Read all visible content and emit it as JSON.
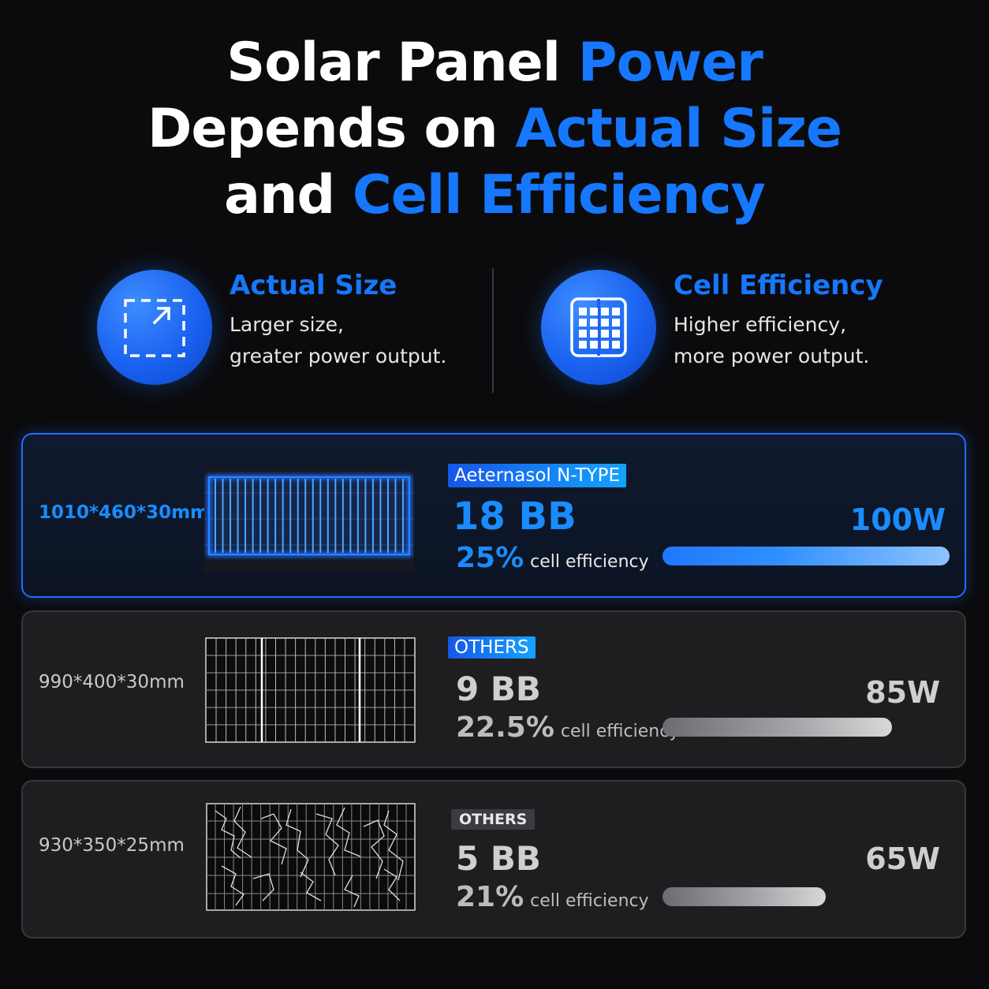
{
  "headline": {
    "line1": {
      "white": "Solar Panel ",
      "blue": "Power"
    },
    "line2": {
      "white": "Depends on ",
      "blue": "Actual Size"
    },
    "line3": {
      "white": "and ",
      "blue": "Cell Efficiency"
    }
  },
  "features": [
    {
      "icon": "expand-frame-icon",
      "title": "Actual Size",
      "line1": "Larger size,",
      "line2": "greater power output."
    },
    {
      "icon": "solar-cell-grid-icon",
      "title": "Cell Efficiency",
      "line1": "Higher efficiency,",
      "line2": "more power output."
    }
  ],
  "comparisons": [
    {
      "dims": "1010*460*30mm",
      "tag": "Aeternasol N-TYPE",
      "bb": "18 BB",
      "efficiency": "25%",
      "efficiency_label": "cell efficiency",
      "watt": "100W",
      "bar_fraction": 1.0,
      "panel_icon": "n-type-panel-glowing-icon"
    },
    {
      "dims": "990*400*30mm",
      "tag": "OTHERS",
      "bb": "9 BB",
      "efficiency": "22.5%",
      "efficiency_label": "cell efficiency",
      "watt": "85W",
      "bar_fraction": 0.8,
      "panel_icon": "standard-panel-icon"
    },
    {
      "dims": "930*350*25mm",
      "tag": "OTHERS",
      "bb": "5 BB",
      "efficiency": "21%",
      "efficiency_label": "cell efficiency",
      "watt": "65W",
      "bar_fraction": 0.57,
      "panel_icon": "cracked-panel-icon"
    }
  ],
  "colors": {
    "accent": "#1677ff",
    "background": "#0b0b0d",
    "card": "#1e1e21"
  }
}
